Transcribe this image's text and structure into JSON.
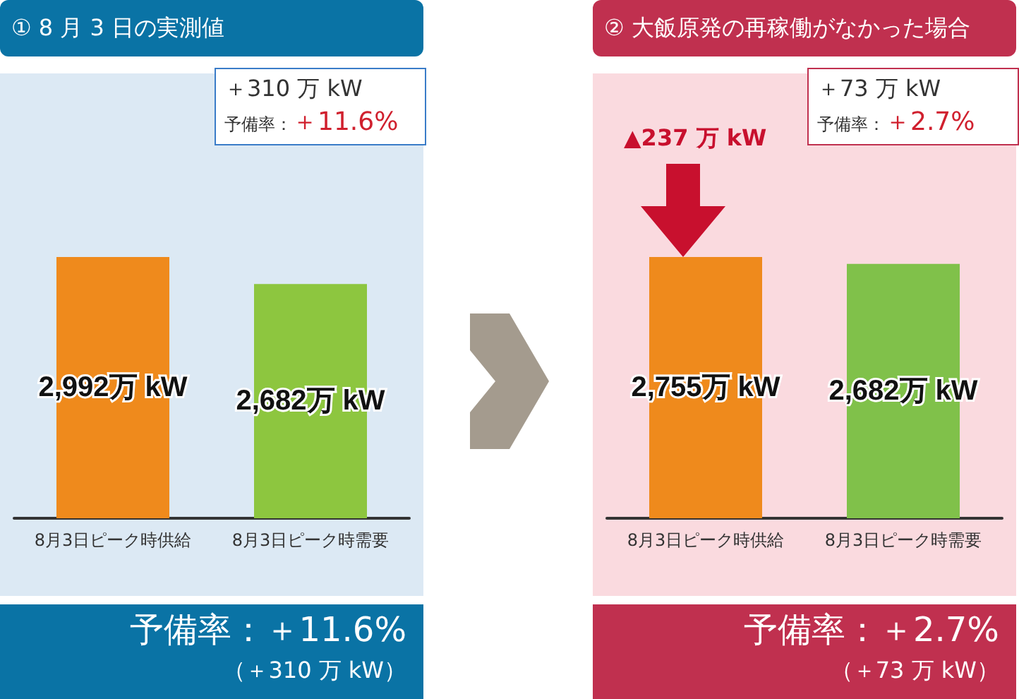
{
  "chart_data": [
    {
      "type": "bar",
      "title": "① 8 月 3 日の実測値",
      "categories": [
        "8月3日ピーク時供給",
        "8月3日ピーク時需要"
      ],
      "values": [
        2992,
        2682
      ],
      "colors": [
        "#ef8a1c",
        "#8dc63f"
      ],
      "value_labels": [
        "2,992万 kW",
        "2,682万 kW"
      ],
      "annotations": [
        "＋310 万 kW",
        "予備率：",
        "＋11.6%",
        "予備率：＋11.6%",
        "（＋310 万 kW）"
      ]
    },
    {
      "type": "bar",
      "title": "② 大飯原発の再稼働がなかった場合",
      "categories": [
        "8月3日ピーク時供給",
        "8月3日ピーク時需要"
      ],
      "values": [
        2755,
        2682
      ],
      "colors": [
        "#ef8a1c",
        "#80c14a"
      ],
      "value_labels": [
        "2,755万 kW",
        "2,682万 kW"
      ],
      "annotations": [
        "＋73 万 kW",
        "予備率：",
        "＋2.7%",
        "予備率：＋2.7%",
        "（＋73 万 kW）",
        "▲237 万 kW"
      ]
    }
  ]
}
